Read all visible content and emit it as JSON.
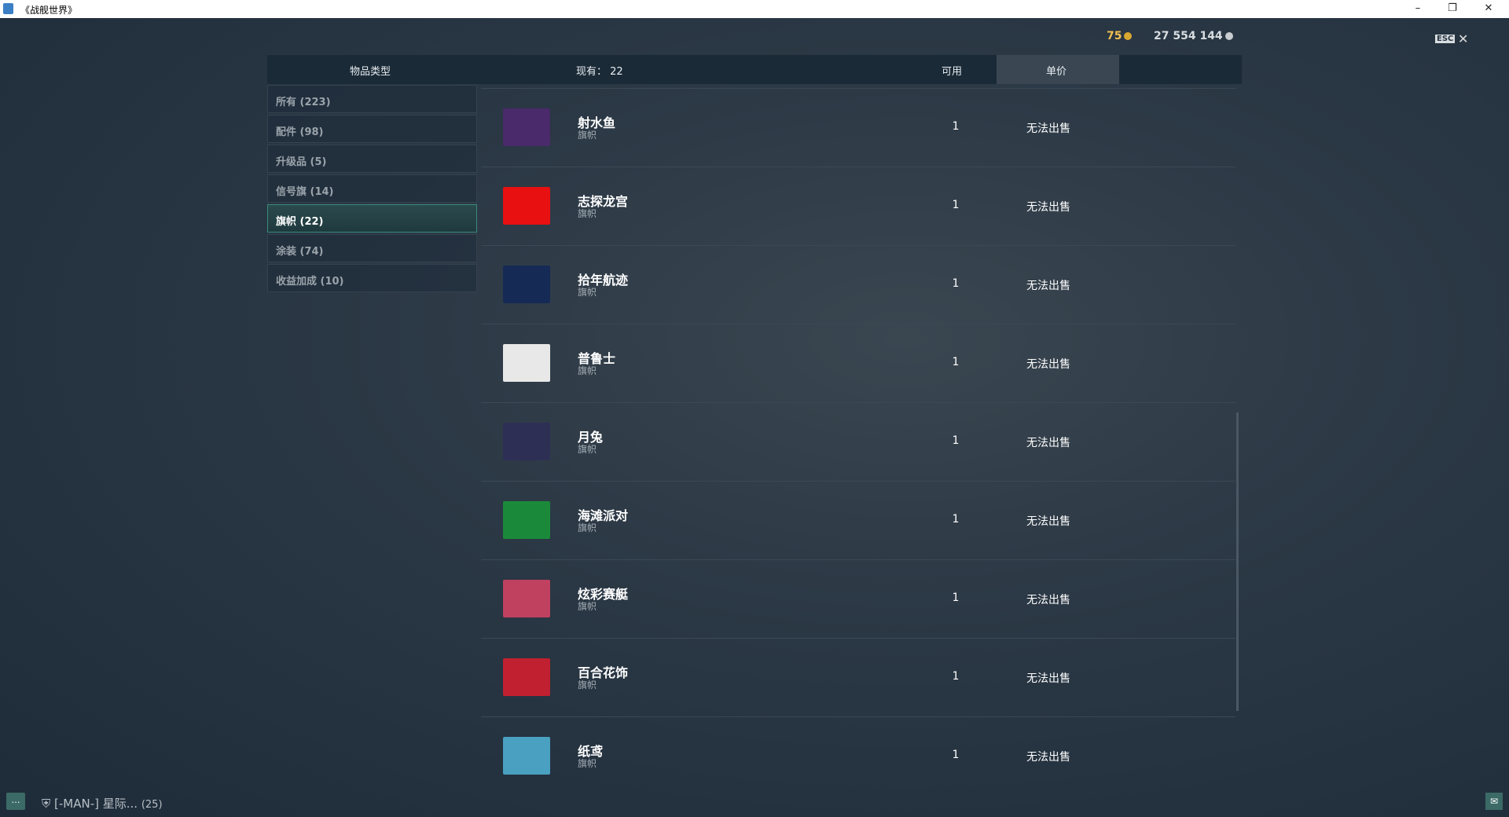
{
  "window": {
    "title": "《战舰世界》"
  },
  "currency": {
    "doubloons": "75",
    "credits": "27 554 144",
    "doubloon_color": "#f0c050",
    "credit_color": "#d8dde0"
  },
  "esc_label": "ESC",
  "header": {
    "category": "物品类型",
    "owned": "现有： 22",
    "available": "可用",
    "price": "单价"
  },
  "categories": [
    {
      "label": "所有 (223)"
    },
    {
      "label": "配件 (98)"
    },
    {
      "label": "升级品 (5)"
    },
    {
      "label": "信号旗 (14)"
    },
    {
      "label": "旗帜 (22)",
      "active": true
    },
    {
      "label": "涂装 (74)"
    },
    {
      "label": "收益加成 (10)"
    }
  ],
  "items": [
    {
      "name": "射水鱼",
      "type": "旗帜",
      "qty": "1",
      "price": "无法出售",
      "color": "#4a2a6a"
    },
    {
      "name": "志探龙宫",
      "type": "旗帜",
      "qty": "1",
      "price": "无法出售",
      "color": "#e81010"
    },
    {
      "name": "拾年航迹",
      "type": "旗帜",
      "qty": "1",
      "price": "无法出售",
      "color": "#152a55"
    },
    {
      "name": "普鲁士",
      "type": "旗帜",
      "qty": "1",
      "price": "无法出售",
      "color": "#e8e8e8"
    },
    {
      "name": "月兔",
      "type": "旗帜",
      "qty": "1",
      "price": "无法出售",
      "color": "#2e2f55"
    },
    {
      "name": "海滩派对",
      "type": "旗帜",
      "qty": "1",
      "price": "无法出售",
      "color": "#1a8a3a"
    },
    {
      "name": "炫彩赛艇",
      "type": "旗帜",
      "qty": "1",
      "price": "无法出售",
      "color": "#c04060"
    },
    {
      "name": "百合花饰",
      "type": "旗帜",
      "qty": "1",
      "price": "无法出售",
      "color": "#c02030"
    },
    {
      "name": "纸鸢",
      "type": "旗帜",
      "qty": "1",
      "price": "无法出售",
      "color": "#4aa0c0"
    }
  ],
  "footer": {
    "clan": "[-MAN-]  星际...",
    "count": "(25)"
  }
}
